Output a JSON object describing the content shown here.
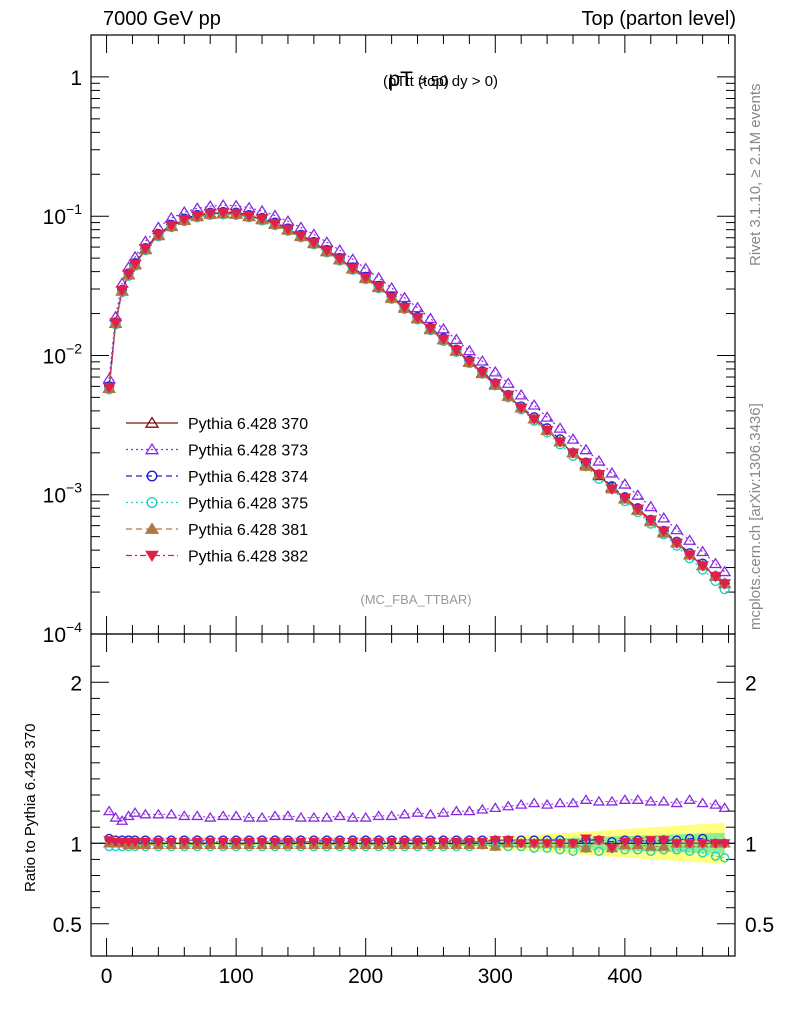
{
  "header": {
    "left": "7000 GeV pp",
    "right": "Top (parton level)"
  },
  "side_labels": {
    "rivet": "Rivet 3.1.10, ≥ 2.1M events",
    "mcplots": "mcplots.cern.ch [arXiv:1306.3436]"
  },
  "chart_data": [
    {
      "type": "line",
      "title_main": "pT",
      "title_sub": "(top)",
      "title_cut": "(pTtt > 50 dy > 0)",
      "watermark": "(MC_FBA_TTBAR)",
      "yscale": "log",
      "ylim": [
        0.0001,
        2
      ],
      "xlim": [
        -12,
        485
      ],
      "y_tick_labels": [
        {
          "mantissa": "1",
          "exp": ""
        },
        {
          "mantissa": "10",
          "exp": "−1"
        },
        {
          "mantissa": "10",
          "exp": "−2"
        },
        {
          "mantissa": "10",
          "exp": "−3"
        },
        {
          "mantissa": "10",
          "exp": "−4"
        }
      ],
      "legend_position": "bottom-left",
      "x": [
        2,
        7,
        12,
        17,
        22,
        30,
        40,
        50,
        60,
        70,
        80,
        90,
        100,
        110,
        120,
        130,
        140,
        150,
        160,
        170,
        180,
        190,
        200,
        210,
        220,
        230,
        240,
        250,
        260,
        270,
        280,
        290,
        300,
        310,
        320,
        330,
        340,
        350,
        360,
        370,
        380,
        390,
        400,
        410,
        420,
        430,
        440,
        450,
        460,
        470,
        477
      ],
      "series": [
        {
          "name": "Pythia 6.428 370",
          "color": "#7a1414",
          "marker": "triangle-open",
          "dash": "",
          "values": [
            0.0058,
            0.017,
            0.029,
            0.038,
            0.045,
            0.058,
            0.073,
            0.085,
            0.094,
            0.1,
            0.104,
            0.105,
            0.104,
            0.1,
            0.095,
            0.088,
            0.08,
            0.072,
            0.064,
            0.056,
            0.049,
            0.042,
            0.036,
            0.031,
            0.026,
            0.022,
            0.0185,
            0.0155,
            0.013,
            0.0108,
            0.009,
            0.0075,
            0.0062,
            0.0051,
            0.0042,
            0.0035,
            0.0029,
            0.0024,
            0.002,
            0.00165,
            0.00137,
            0.00113,
            0.00094,
            0.00078,
            0.00065,
            0.00054,
            0.00045,
            0.00037,
            0.00031,
            0.00026,
            0.00023
          ]
        },
        {
          "name": "Pythia 6.428 373",
          "color": "#8a2be2",
          "marker": "triangle-open",
          "dash": "2,3",
          "values": [
            0.0068,
            0.019,
            0.033,
            0.043,
            0.051,
            0.066,
            0.083,
            0.097,
            0.107,
            0.114,
            0.118,
            0.12,
            0.119,
            0.115,
            0.109,
            0.101,
            0.092,
            0.083,
            0.074,
            0.065,
            0.057,
            0.049,
            0.042,
            0.036,
            0.0305,
            0.026,
            0.022,
            0.0184,
            0.0155,
            0.013,
            0.0108,
            0.0091,
            0.0076,
            0.0063,
            0.0052,
            0.0044,
            0.0036,
            0.003,
            0.0025,
            0.0021,
            0.00174,
            0.00143,
            0.00119,
            0.00099,
            0.00082,
            0.00068,
            0.00056,
            0.00047,
            0.00039,
            0.00032,
            0.00028
          ]
        },
        {
          "name": "Pythia 6.428 374",
          "color": "#2222cc",
          "marker": "circle-open",
          "dash": "6,4",
          "values": [
            0.006,
            0.0173,
            0.0295,
            0.0388,
            0.046,
            0.059,
            0.0745,
            0.0868,
            0.096,
            0.102,
            0.106,
            0.1072,
            0.1062,
            0.1021,
            0.097,
            0.0899,
            0.0817,
            0.0735,
            0.0653,
            0.0572,
            0.05,
            0.0429,
            0.0367,
            0.0316,
            0.0265,
            0.0224,
            0.0189,
            0.0158,
            0.0133,
            0.011,
            0.0092,
            0.0077,
            0.0063,
            0.0052,
            0.0043,
            0.0036,
            0.003,
            0.0025,
            0.002,
            0.0017,
            0.0014,
            0.00115,
            0.00096,
            0.0008,
            0.00066,
            0.00055,
            0.00046,
            0.00038,
            0.00032,
            0.00026,
            0.00023
          ]
        },
        {
          "name": "Pythia 6.428 375",
          "color": "#20d0c0",
          "marker": "circle-open",
          "dash": "2,3",
          "values": [
            0.0057,
            0.0167,
            0.0285,
            0.0373,
            0.0441,
            0.0569,
            0.0716,
            0.0834,
            0.0922,
            0.098,
            0.1019,
            0.1029,
            0.1019,
            0.098,
            0.0931,
            0.0863,
            0.0784,
            0.0706,
            0.0627,
            0.0549,
            0.048,
            0.0412,
            0.0353,
            0.0304,
            0.0255,
            0.0216,
            0.0181,
            0.0152,
            0.0127,
            0.0106,
            0.0088,
            0.0074,
            0.0061,
            0.005,
            0.0041,
            0.0034,
            0.0028,
            0.0023,
            0.0019,
            0.0016,
            0.0013,
            0.0011,
            0.0009,
            0.00075,
            0.00062,
            0.00052,
            0.00043,
            0.00035,
            0.00029,
            0.00024,
            0.00021
          ]
        },
        {
          "name": "Pythia 6.428 381",
          "color": "#b07840",
          "marker": "triangle-filled",
          "dash": "6,4",
          "values": [
            0.0058,
            0.017,
            0.029,
            0.0378,
            0.0446,
            0.0574,
            0.0723,
            0.0842,
            0.0931,
            0.099,
            0.103,
            0.104,
            0.103,
            0.099,
            0.0941,
            0.0871,
            0.0792,
            0.0713,
            0.0634,
            0.0554,
            0.0485,
            0.0416,
            0.0356,
            0.0307,
            0.0257,
            0.0218,
            0.0183,
            0.0153,
            0.0129,
            0.0107,
            0.0089,
            0.0074,
            0.0061,
            0.0051,
            0.0042,
            0.0035,
            0.0029,
            0.0024,
            0.002,
            0.0016,
            0.0014,
            0.0011,
            0.00093,
            0.00077,
            0.00064,
            0.00053,
            0.00045,
            0.00037,
            0.00031,
            0.00026,
            0.00023
          ]
        },
        {
          "name": "Pythia 6.428 382",
          "color": "#e0204a",
          "marker": "triangle-down-filled",
          "dash": "6,3,2,3",
          "values": [
            0.0059,
            0.0172,
            0.0293,
            0.0384,
            0.0455,
            0.0586,
            0.0737,
            0.0859,
            0.0949,
            0.101,
            0.105,
            0.1061,
            0.105,
            0.101,
            0.096,
            0.0889,
            0.0808,
            0.0727,
            0.0646,
            0.0566,
            0.0495,
            0.0424,
            0.0364,
            0.0313,
            0.0263,
            0.0222,
            0.0187,
            0.0157,
            0.0131,
            0.0109,
            0.0091,
            0.0076,
            0.0063,
            0.0052,
            0.0042,
            0.0035,
            0.0029,
            0.0024,
            0.002,
            0.0017,
            0.0014,
            0.0011,
            0.00095,
            0.00079,
            0.00066,
            0.00055,
            0.00045,
            0.00037,
            0.00031,
            0.00026,
            0.00023
          ]
        }
      ]
    },
    {
      "type": "line",
      "ylabel": "Ratio to Pythia 6.428 370",
      "ylim": [
        0.3,
        2.3
      ],
      "xlim": [
        -12,
        485
      ],
      "y_ticks": [
        0.5,
        1,
        2
      ],
      "x_ticks": [
        0,
        100,
        200,
        300,
        400
      ],
      "band_color_inner": "#90ee90",
      "band_color_outer": "#ffff80",
      "ratios": [
        {
          "name": "Pythia 6.428 373",
          "values": [
            1.2,
            1.16,
            1.14,
            1.17,
            1.19,
            1.18,
            1.18,
            1.18,
            1.17,
            1.17,
            1.16,
            1.17,
            1.17,
            1.16,
            1.16,
            1.17,
            1.17,
            1.16,
            1.16,
            1.16,
            1.17,
            1.16,
            1.16,
            1.17,
            1.17,
            1.18,
            1.19,
            1.18,
            1.19,
            1.2,
            1.2,
            1.21,
            1.22,
            1.23,
            1.24,
            1.25,
            1.24,
            1.25,
            1.25,
            1.27,
            1.26,
            1.26,
            1.27,
            1.27,
            1.26,
            1.26,
            1.25,
            1.27,
            1.25,
            1.24,
            1.22
          ]
        },
        {
          "name": "Pythia 6.428 374",
          "values": [
            1.03,
            1.02,
            1.02,
            1.02,
            1.02,
            1.02,
            1.02,
            1.02,
            1.02,
            1.02,
            1.02,
            1.02,
            1.02,
            1.02,
            1.02,
            1.02,
            1.02,
            1.02,
            1.02,
            1.02,
            1.02,
            1.02,
            1.02,
            1.02,
            1.02,
            1.02,
            1.02,
            1.02,
            1.02,
            1.02,
            1.02,
            1.02,
            1.02,
            1.02,
            1.02,
            1.02,
            1.02,
            1.02,
            1.0,
            1.02,
            1.02,
            1.01,
            1.02,
            1.02,
            1.01,
            1.02,
            1.02,
            1.03,
            1.03,
            1.0,
            1.0
          ]
        },
        {
          "name": "Pythia 6.428 375",
          "values": [
            0.98,
            0.98,
            0.98,
            0.98,
            0.98,
            0.98,
            0.98,
            0.98,
            0.98,
            0.98,
            0.98,
            0.98,
            0.98,
            0.98,
            0.98,
            0.98,
            0.98,
            0.98,
            0.98,
            0.98,
            0.98,
            0.98,
            0.98,
            0.98,
            0.98,
            0.98,
            0.98,
            0.98,
            0.98,
            0.98,
            0.98,
            0.99,
            0.98,
            0.98,
            0.98,
            0.97,
            0.97,
            0.96,
            0.95,
            0.97,
            0.95,
            0.97,
            0.96,
            0.96,
            0.95,
            0.96,
            0.96,
            0.95,
            0.94,
            0.92,
            0.91
          ]
        },
        {
          "name": "Pythia 6.428 381",
          "values": [
            1.0,
            1.0,
            1.0,
            0.99,
            0.99,
            0.99,
            0.99,
            0.99,
            0.99,
            0.99,
            0.99,
            0.99,
            0.99,
            0.99,
            0.99,
            0.99,
            0.99,
            0.99,
            0.99,
            0.99,
            0.99,
            0.99,
            0.99,
            0.99,
            0.99,
            0.99,
            0.99,
            0.99,
            0.99,
            0.99,
            0.99,
            0.99,
            0.98,
            1.0,
            1.0,
            1.0,
            1.0,
            1.0,
            1.0,
            0.97,
            1.02,
            0.97,
            0.99,
            0.99,
            0.98,
            0.98,
            1.0,
            1.0,
            1.0,
            1.0,
            1.0
          ]
        },
        {
          "name": "Pythia 6.428 382",
          "values": [
            1.02,
            1.01,
            1.01,
            1.01,
            1.01,
            1.01,
            1.01,
            1.01,
            1.01,
            1.01,
            1.01,
            1.01,
            1.01,
            1.01,
            1.01,
            1.01,
            1.01,
            1.01,
            1.01,
            1.01,
            1.01,
            1.01,
            1.01,
            1.01,
            1.01,
            1.01,
            1.01,
            1.01,
            1.01,
            1.01,
            1.01,
            1.01,
            1.02,
            1.02,
            1.0,
            1.0,
            1.0,
            1.0,
            1.0,
            1.03,
            1.02,
            0.97,
            1.01,
            1.01,
            1.02,
            1.02,
            1.0,
            1.0,
            1.0,
            1.0,
            1.0
          ]
        }
      ]
    }
  ]
}
